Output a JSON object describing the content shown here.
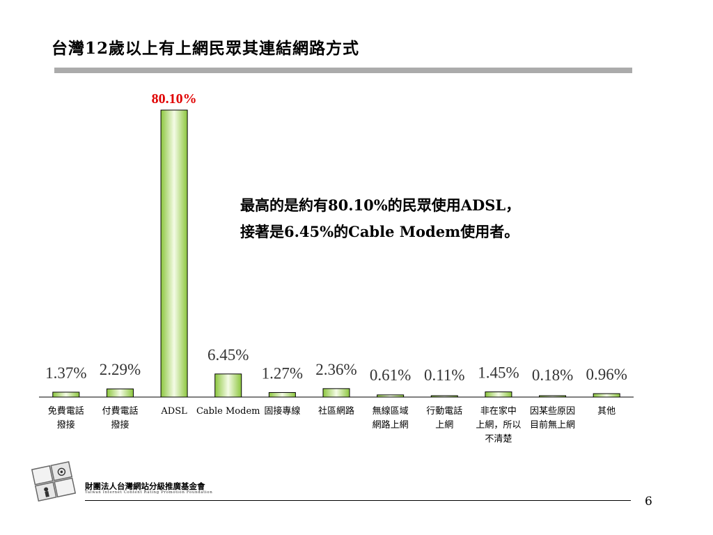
{
  "slide": {
    "title": "台灣12歲以上有上網民眾其連結網路方式",
    "annotation_line1": "最高的是約有80.10%的民眾使用ADSL，",
    "annotation_line2": "接著是6.45%的Cable Modem使用者。",
    "page_number": "6"
  },
  "footer": {
    "org_name": "財團法人台灣網站分級推廣基金會",
    "org_name_en": "Taiwan Internet Content Rating Promotion Foundation"
  },
  "colors": {
    "bar_fill_dark": "#8cc63e",
    "bar_fill_light": "#f4fbe6",
    "bar_stroke": "#000000",
    "highlight_label": "#e00000",
    "title_rule": "#ababab"
  },
  "chart_data": {
    "type": "bar",
    "categories": [
      [
        "免費電話",
        "撥接"
      ],
      [
        "付費電話",
        "撥接"
      ],
      [
        "ADSL"
      ],
      [
        "Cable Modem"
      ],
      [
        "固接專線"
      ],
      [
        "社區網路"
      ],
      [
        "無線區域",
        "網路上網"
      ],
      [
        "行動電話",
        "上網"
      ],
      [
        "非在家中",
        "上網，所以",
        "不清楚"
      ],
      [
        "因某些原因",
        "目前無上網"
      ],
      [
        "其他"
      ]
    ],
    "values": [
      1.37,
      2.29,
      80.1,
      6.45,
      1.27,
      2.36,
      0.61,
      0.11,
      1.45,
      0.18,
      0.96
    ],
    "data_labels": [
      "1.37%",
      "2.29%",
      "80.10%",
      "6.45%",
      "1.27%",
      "2.36%",
      "0.61%",
      "0.11%",
      "1.45%",
      "0.18%",
      "0.96%"
    ],
    "highlight_index": 2,
    "title": "",
    "xlabel": "",
    "ylabel": "",
    "ylim": [
      0,
      80.1
    ],
    "grid": false,
    "legend": "none"
  }
}
